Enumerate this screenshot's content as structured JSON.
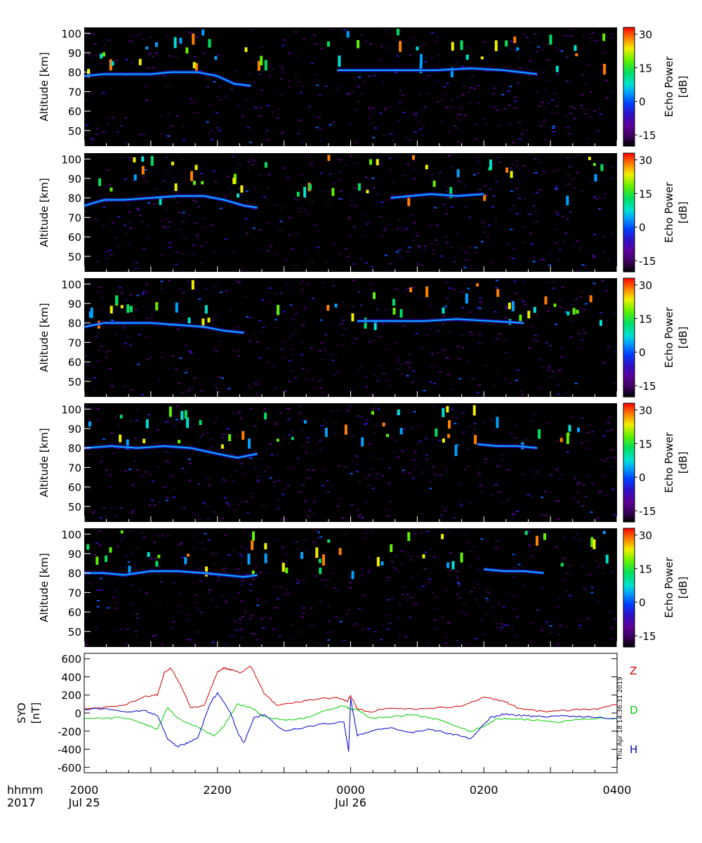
{
  "chart_data": [
    {
      "type": "heatmap",
      "panel": 1,
      "ylabel": "Altitude [km]",
      "yticks": [
        50,
        60,
        70,
        80,
        90,
        100
      ],
      "ylim": [
        42,
        103
      ],
      "xlim_hours": [
        20,
        28
      ],
      "colorbar": {
        "label": "Echo Power [dB]",
        "ticks": [
          -15,
          0,
          15,
          30
        ],
        "range": [
          -20,
          33
        ]
      },
      "echo_layers": [
        {
          "x": [
            20.0,
            20.3,
            20.6,
            21.0,
            21.3,
            21.7,
            22.0,
            22.25,
            22.5
          ],
          "y": [
            78,
            79,
            79,
            79,
            80,
            80,
            78,
            74,
            73
          ]
        },
        {
          "x": [
            23.8,
            24.3,
            24.8,
            25.3,
            25.8,
            26.3,
            26.8
          ],
          "y": [
            81,
            81,
            81,
            81,
            82,
            81,
            79
          ]
        }
      ]
    },
    {
      "type": "heatmap",
      "panel": 2,
      "ylabel": "Altitude [km]",
      "yticks": [
        50,
        60,
        70,
        80,
        90,
        100
      ],
      "ylim": [
        42,
        103
      ],
      "xlim_hours": [
        20,
        28
      ],
      "colorbar": {
        "label": "Echo Power [dB]",
        "ticks": [
          -15,
          0,
          15,
          30
        ],
        "range": [
          -20,
          33
        ]
      },
      "echo_layers": [
        {
          "x": [
            20.0,
            20.3,
            20.6,
            21.0,
            21.4,
            21.8,
            22.1,
            22.4,
            22.6
          ],
          "y": [
            76,
            79,
            79,
            80,
            81,
            81,
            79,
            76,
            75
          ]
        },
        {
          "x": [
            24.6,
            24.9,
            25.2,
            25.6,
            26.0
          ],
          "y": [
            80,
            81,
            82,
            81,
            82
          ]
        }
      ]
    },
    {
      "type": "heatmap",
      "panel": 3,
      "ylabel": "Altitude [km]",
      "yticks": [
        50,
        60,
        70,
        80,
        90,
        100
      ],
      "ylim": [
        42,
        103
      ],
      "xlim_hours": [
        20,
        28
      ],
      "colorbar": {
        "label": "Echo Power [dB]",
        "ticks": [
          -15,
          0,
          15,
          30
        ],
        "range": [
          -20,
          33
        ]
      },
      "echo_layers": [
        {
          "x": [
            20.0,
            20.3,
            20.6,
            21.0,
            21.4,
            21.8,
            22.1,
            22.4
          ],
          "y": [
            78,
            80,
            80,
            80,
            79,
            78,
            76,
            75
          ]
        },
        {
          "x": [
            24.1,
            24.6,
            25.1,
            25.6,
            26.1,
            26.6
          ],
          "y": [
            81,
            81,
            81,
            82,
            81,
            80
          ]
        }
      ]
    },
    {
      "type": "heatmap",
      "panel": 4,
      "ylabel": "Altitude [km]",
      "yticks": [
        50,
        60,
        70,
        80,
        90,
        100
      ],
      "ylim": [
        42,
        103
      ],
      "xlim_hours": [
        20,
        28
      ],
      "colorbar": {
        "label": "Echo Power [dB]",
        "ticks": [
          -15,
          0,
          15,
          30
        ],
        "range": [
          -20,
          33
        ]
      },
      "echo_layers": [
        {
          "x": [
            20.0,
            20.4,
            20.8,
            21.2,
            21.6,
            22.0,
            22.3,
            22.6
          ],
          "y": [
            80,
            81,
            80,
            81,
            80,
            77,
            75,
            77
          ]
        },
        {
          "x": [
            25.9,
            26.2,
            26.5,
            26.8
          ],
          "y": [
            82,
            81,
            81,
            80
          ]
        }
      ]
    },
    {
      "type": "heatmap",
      "panel": 5,
      "ylabel": "Altitude [km]",
      "yticks": [
        50,
        60,
        70,
        80,
        90,
        100
      ],
      "ylim": [
        42,
        103
      ],
      "xlim_hours": [
        20,
        28
      ],
      "colorbar": {
        "label": "Echo Power [dB]",
        "ticks": [
          -15,
          0,
          15,
          30
        ],
        "range": [
          -20,
          33
        ]
      },
      "echo_layers": [
        {
          "x": [
            20.0,
            20.3,
            20.6,
            21.0,
            21.4,
            21.8,
            22.1,
            22.4,
            22.6
          ],
          "y": [
            80,
            80,
            79,
            81,
            81,
            80,
            79,
            78,
            79
          ]
        },
        {
          "x": [
            26.0,
            26.3,
            26.6,
            26.9
          ],
          "y": [
            82,
            81,
            81,
            80
          ]
        }
      ]
    },
    {
      "type": "line",
      "ylabel": "SYO [nT]",
      "yticks": [
        -600,
        -400,
        -200,
        0,
        200,
        400,
        600
      ],
      "ylim": [
        -660,
        660
      ],
      "xlim_hours": [
        20,
        28
      ],
      "series": [
        {
          "name": "Z",
          "color": "#cc0000",
          "x": [
            20.0,
            20.3,
            20.6,
            20.9,
            21.1,
            21.2,
            21.3,
            21.45,
            21.6,
            21.8,
            22.0,
            22.1,
            22.2,
            22.35,
            22.5,
            22.7,
            22.9,
            23.2,
            23.5,
            23.8,
            23.95,
            24.0,
            24.1,
            24.3,
            24.6,
            25.0,
            25.4,
            25.7,
            26.0,
            26.3,
            26.5,
            26.8,
            27.1,
            27.4,
            27.7,
            28.0
          ],
          "y": [
            50,
            60,
            90,
            180,
            200,
            440,
            500,
            300,
            60,
            80,
            450,
            500,
            480,
            450,
            520,
            220,
            80,
            120,
            160,
            170,
            130,
            190,
            50,
            10,
            60,
            40,
            60,
            80,
            180,
            130,
            60,
            20,
            20,
            40,
            40,
            100
          ]
        },
        {
          "name": "D",
          "color": "#00cc00",
          "x": [
            20.0,
            20.3,
            20.6,
            20.9,
            21.1,
            21.25,
            21.4,
            21.7,
            21.95,
            22.1,
            22.3,
            22.5,
            22.7,
            23.0,
            23.3,
            23.6,
            23.9,
            24.0,
            24.1,
            24.3,
            24.6,
            24.9,
            25.2,
            25.5,
            25.8,
            26.0,
            26.2,
            26.5,
            26.8,
            27.1,
            27.5,
            28.0
          ],
          "y": [
            -60,
            -60,
            -50,
            -120,
            -180,
            60,
            -60,
            -160,
            -250,
            -140,
            100,
            60,
            -40,
            -80,
            -60,
            20,
            80,
            40,
            40,
            -60,
            -40,
            -20,
            -50,
            -120,
            -200,
            -150,
            -60,
            -70,
            -80,
            -100,
            -60,
            -60
          ]
        },
        {
          "name": "H",
          "color": "#0000cc",
          "x": [
            20.0,
            20.3,
            20.6,
            20.9,
            21.1,
            21.25,
            21.4,
            21.55,
            21.7,
            21.9,
            22.0,
            22.2,
            22.3,
            22.4,
            22.55,
            22.7,
            23.0,
            23.3,
            23.6,
            23.9,
            23.97,
            24.0,
            24.1,
            24.3,
            24.6,
            24.9,
            25.2,
            25.5,
            25.8,
            26.1,
            26.3,
            26.6,
            26.9,
            27.2,
            27.5,
            28.0
          ],
          "y": [
            40,
            50,
            10,
            30,
            -30,
            -280,
            -370,
            -330,
            -280,
            120,
            220,
            0,
            -210,
            -330,
            -50,
            -20,
            -200,
            -160,
            -120,
            -100,
            -420,
            160,
            -250,
            -200,
            -160,
            -220,
            -180,
            -230,
            -280,
            -50,
            -10,
            -30,
            -40,
            -30,
            -40,
            -60
          ]
        }
      ]
    }
  ],
  "labels": {
    "altitude": "Altitude [km]",
    "echo_power_1": "Echo Power",
    "echo_power_2": "[dB]",
    "syo_1": "SYO",
    "syo_2": "[nT]",
    "z": "Z",
    "d": "D",
    "h": "H",
    "hhmm": "hhmm",
    "year": "2017",
    "timestamp": "Thu Apr 18 14:36:31 2019"
  },
  "x_axis": {
    "ticks": [
      {
        "hour": 20,
        "time": "2000",
        "date": "Jul 25"
      },
      {
        "hour": 22,
        "time": "2200",
        "date": ""
      },
      {
        "hour": 24,
        "time": "0000",
        "date": "Jul 26"
      },
      {
        "hour": 26,
        "time": "0200",
        "date": ""
      },
      {
        "hour": 28,
        "time": "0400",
        "date": ""
      }
    ]
  },
  "colors": {
    "background": "#ffffff",
    "panel_background": "#000000",
    "colorbar": [
      "#000000",
      "#3a005a",
      "#5e0098",
      "#3010c8",
      "#0040ff",
      "#00a0ff",
      "#00e0d0",
      "#00e060",
      "#60f000",
      "#f0f000",
      "#ff8000",
      "#ff0000"
    ]
  }
}
